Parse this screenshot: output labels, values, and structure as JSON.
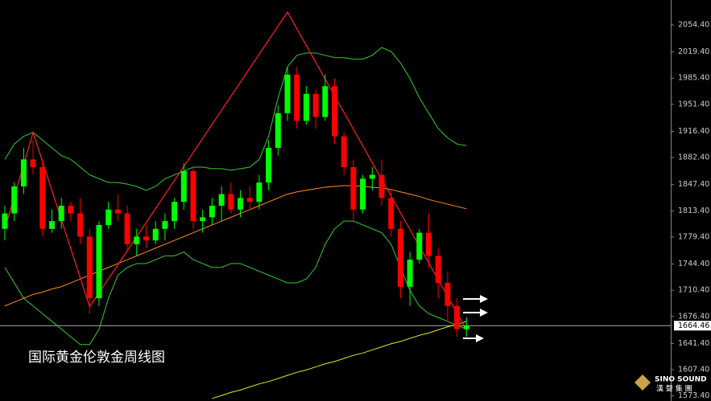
{
  "chart_data": {
    "type": "candlestick",
    "title": "国际黄金伦敦金周线图",
    "up_color": "#00ff00",
    "down_color": "#ff0000",
    "ylim": [
      1566.8,
      2086.7
    ],
    "yticks": [
      {
        "value": 2054.4,
        "label": "2054.40"
      },
      {
        "value": 2019.4,
        "label": "2019.40"
      },
      {
        "value": 1985.4,
        "label": "1985.40"
      },
      {
        "value": 1951.4,
        "label": "1951.40"
      },
      {
        "value": 1916.4,
        "label": "1916.40"
      },
      {
        "value": 1882.4,
        "label": "1882.40"
      },
      {
        "value": 1847.4,
        "label": "1847.40"
      },
      {
        "value": 1813.4,
        "label": "1813.40"
      },
      {
        "value": 1779.4,
        "label": "1779.40"
      },
      {
        "value": 1744.4,
        "label": "1744.40"
      },
      {
        "value": 1710.4,
        "label": "1710.40"
      },
      {
        "value": 1676.4,
        "label": "1676.40"
      },
      {
        "value": 1641.4,
        "label": "1641.40"
      },
      {
        "value": 1607.4,
        "label": "1607.40"
      },
      {
        "value": 1573.4,
        "label": "1573.40"
      }
    ],
    "last_price": 1664.46,
    "ohlc": [
      [
        1790,
        1820,
        1775,
        1810
      ],
      [
        1810,
        1850,
        1800,
        1845
      ],
      [
        1845,
        1895,
        1835,
        1880
      ],
      [
        1880,
        1905,
        1860,
        1870
      ],
      [
        1870,
        1880,
        1780,
        1790
      ],
      [
        1790,
        1815,
        1785,
        1800
      ],
      [
        1800,
        1830,
        1790,
        1820
      ],
      [
        1820,
        1825,
        1800,
        1810
      ],
      [
        1810,
        1830,
        1770,
        1780
      ],
      [
        1780,
        1790,
        1680,
        1700
      ],
      [
        1700,
        1800,
        1690,
        1795
      ],
      [
        1795,
        1825,
        1790,
        1815
      ],
      [
        1815,
        1835,
        1800,
        1810
      ],
      [
        1810,
        1820,
        1760,
        1770
      ],
      [
        1770,
        1790,
        1755,
        1780
      ],
      [
        1780,
        1795,
        1765,
        1775
      ],
      [
        1775,
        1800,
        1770,
        1790
      ],
      [
        1790,
        1810,
        1775,
        1800
      ],
      [
        1800,
        1830,
        1790,
        1825
      ],
      [
        1825,
        1875,
        1815,
        1865
      ],
      [
        1865,
        1870,
        1790,
        1800
      ],
      [
        1800,
        1815,
        1785,
        1805
      ],
      [
        1805,
        1830,
        1795,
        1820
      ],
      [
        1820,
        1845,
        1800,
        1835
      ],
      [
        1835,
        1850,
        1810,
        1815
      ],
      [
        1815,
        1840,
        1805,
        1830
      ],
      [
        1830,
        1845,
        1815,
        1825
      ],
      [
        1825,
        1860,
        1815,
        1850
      ],
      [
        1850,
        1905,
        1840,
        1895
      ],
      [
        1895,
        1950,
        1885,
        1940
      ],
      [
        1940,
        2000,
        1930,
        1990
      ],
      [
        1990,
        2000,
        1920,
        1930
      ],
      [
        1930,
        1975,
        1925,
        1965
      ],
      [
        1965,
        1970,
        1920,
        1935
      ],
      [
        1935,
        1990,
        1930,
        1975
      ],
      [
        1975,
        1985,
        1900,
        1910
      ],
      [
        1910,
        1915,
        1860,
        1870
      ],
      [
        1870,
        1880,
        1800,
        1815
      ],
      [
        1815,
        1860,
        1810,
        1855
      ],
      [
        1855,
        1870,
        1840,
        1860
      ],
      [
        1860,
        1880,
        1820,
        1830
      ],
      [
        1830,
        1840,
        1780,
        1790
      ],
      [
        1790,
        1800,
        1700,
        1715
      ],
      [
        1715,
        1760,
        1690,
        1750
      ],
      [
        1750,
        1790,
        1745,
        1785
      ],
      [
        1785,
        1810,
        1740,
        1755
      ],
      [
        1755,
        1765,
        1700,
        1720
      ],
      [
        1720,
        1735,
        1670,
        1690
      ],
      [
        1690,
        1700,
        1650,
        1660
      ],
      [
        1660,
        1675,
        1650,
        1664.46
      ]
    ],
    "lines": [
      {
        "color": "#33cc33",
        "values": [
          1880,
          1900,
          1910,
          1915,
          1905,
          1895,
          1885,
          1880,
          1870,
          1860,
          1855,
          1850,
          1850,
          1848,
          1845,
          1840,
          1845,
          1855,
          1860,
          1865,
          1870,
          1870,
          1868,
          1868,
          1866,
          1868,
          1870,
          1880,
          1910,
          1960,
          2000,
          2015,
          2018,
          2018,
          2015,
          2012,
          2012,
          2010,
          2010,
          2015,
          2025,
          2020,
          2005,
          1985,
          1960,
          1940,
          1920,
          1908,
          1900,
          1898
        ]
      },
      {
        "color": "#33cc33",
        "values": [
          1740,
          1720,
          1700,
          1690,
          1680,
          1670,
          1660,
          1650,
          1640,
          1640,
          1660,
          1700,
          1730,
          1740,
          1745,
          1745,
          1750,
          1755,
          1755,
          1760,
          1750,
          1745,
          1740,
          1740,
          1745,
          1745,
          1740,
          1735,
          1730,
          1725,
          1720,
          1720,
          1725,
          1740,
          1770,
          1790,
          1800,
          1800,
          1795,
          1790,
          1785,
          1770,
          1740,
          1710,
          1690,
          1680,
          1675,
          1670,
          1665,
          1660
        ]
      },
      {
        "color": "#ff8c1a",
        "values": [
          1690,
          1695,
          1700,
          1705,
          1708,
          1712,
          1715,
          1720,
          1725,
          1730,
          1735,
          1740,
          1745,
          1750,
          1755,
          1760,
          1765,
          1770,
          1775,
          1780,
          1785,
          1790,
          1795,
          1800,
          1805,
          1810,
          1815,
          1820,
          1825,
          1830,
          1835,
          1838,
          1840,
          1842,
          1844,
          1845,
          1846,
          1846,
          1845,
          1844,
          1843,
          1841,
          1838,
          1835,
          1832,
          1828,
          1825,
          1822,
          1819,
          1816
        ]
      },
      {
        "color": "#e6e619",
        "values": [
          null,
          null,
          null,
          null,
          null,
          null,
          null,
          null,
          null,
          null,
          null,
          null,
          null,
          null,
          null,
          null,
          null,
          null,
          null,
          null,
          null,
          null,
          1570,
          1574,
          1578,
          1581,
          1585,
          1589,
          1592,
          1596,
          1600,
          1604,
          1607,
          1611,
          1615,
          1618,
          1622,
          1626,
          1629,
          1633,
          1637,
          1641,
          1644,
          1648,
          1652,
          1655,
          1659,
          1663,
          1666,
          1670
        ]
      }
    ],
    "zigzag": {
      "color": "#ff2020",
      "x": [
        0,
        3,
        9,
        30,
        49
      ],
      "values": [
        1790,
        1915,
        1689,
        2071,
        1659
      ]
    },
    "logo": {
      "name": "SINO SOUND",
      "sub": "漢 聲 集 團"
    }
  }
}
